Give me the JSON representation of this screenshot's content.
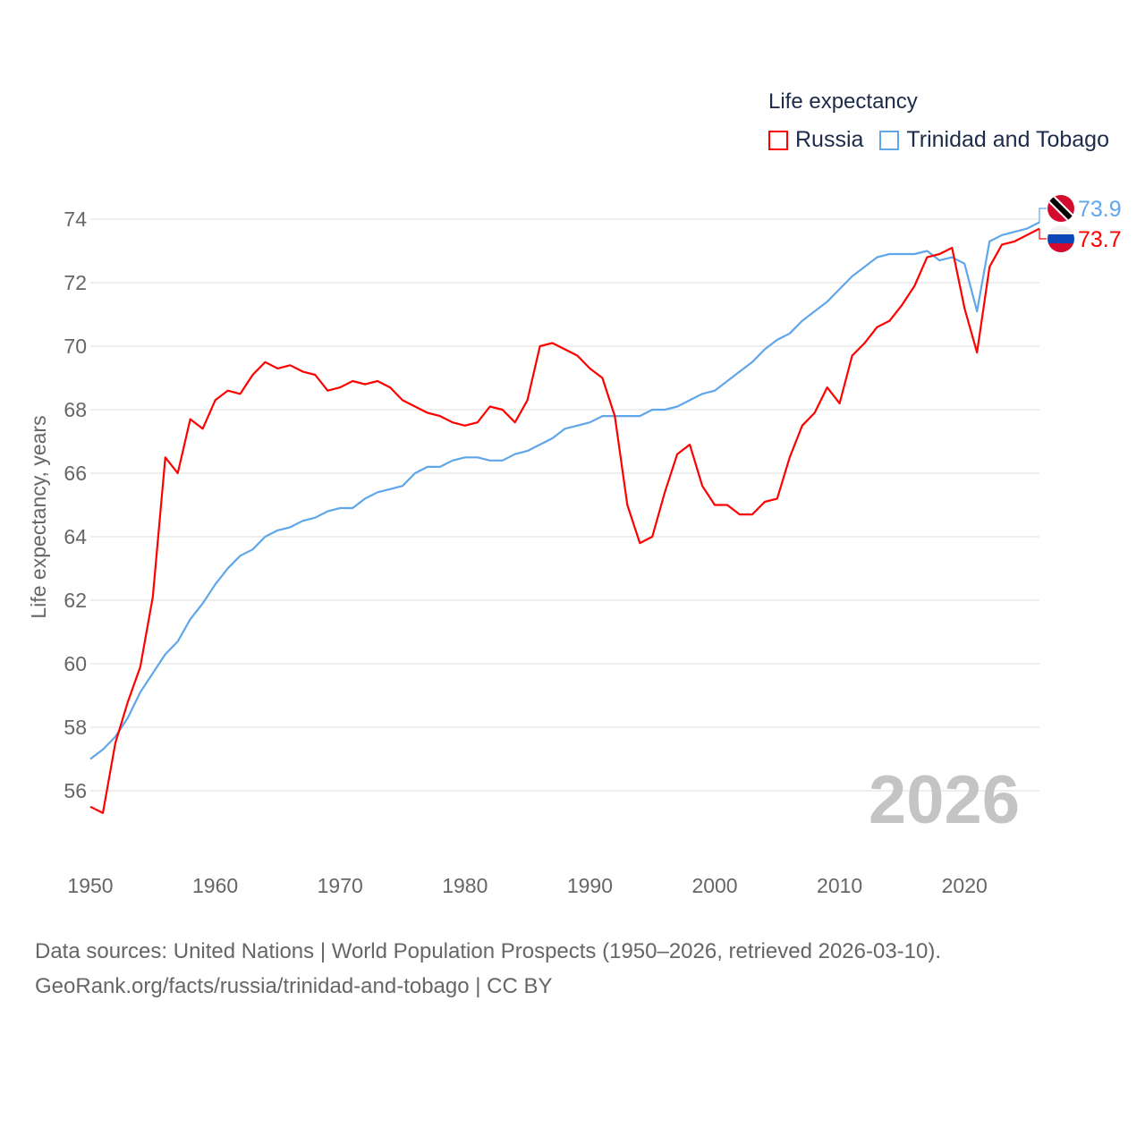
{
  "chart_data": {
    "type": "line",
    "title": "Life expectancy",
    "ylabel": "Life expectancy, years",
    "xlabel": "",
    "xlim": [
      1950,
      2026
    ],
    "ylim": [
      54,
      75
    ],
    "grid": true,
    "legend_placement": "top-right",
    "x_ticks": [
      "1950",
      "1960",
      "1970",
      "1980",
      "1990",
      "2000",
      "2010",
      "2020"
    ],
    "y_ticks": [
      "56",
      "58",
      "60",
      "62",
      "64",
      "66",
      "68",
      "70",
      "72",
      "74"
    ],
    "year_watermark": "2026",
    "x_start": 1950,
    "series": [
      {
        "name": "Russia",
        "color": "#ff0000",
        "end_label": "73.7",
        "flag": "russia-flag",
        "values": [
          55.5,
          55.3,
          57.5,
          58.8,
          59.9,
          62.1,
          66.5,
          66.0,
          67.7,
          67.4,
          68.3,
          68.6,
          68.5,
          69.1,
          69.5,
          69.3,
          69.4,
          69.2,
          69.1,
          68.6,
          68.7,
          68.9,
          68.8,
          68.9,
          68.7,
          68.3,
          68.1,
          67.9,
          67.8,
          67.6,
          67.5,
          67.6,
          68.1,
          68.0,
          67.6,
          68.3,
          70.0,
          70.1,
          69.9,
          69.7,
          69.3,
          69.0,
          67.8,
          65.0,
          63.8,
          64.0,
          65.4,
          66.6,
          66.9,
          65.6,
          65.0,
          65.0,
          64.7,
          64.7,
          65.1,
          65.2,
          66.5,
          67.5,
          67.9,
          68.7,
          68.2,
          69.7,
          70.1,
          70.6,
          70.8,
          71.3,
          71.9,
          72.8,
          72.9,
          73.1,
          71.2,
          69.8,
          72.5,
          73.2,
          73.3,
          73.5,
          73.7
        ]
      },
      {
        "name": "Trinidad and Tobago",
        "color": "#5fa6ea",
        "end_label": "73.9",
        "flag": "trinidad-flag",
        "values": [
          57.0,
          57.3,
          57.7,
          58.3,
          59.1,
          59.7,
          60.3,
          60.7,
          61.4,
          61.9,
          62.5,
          63.0,
          63.4,
          63.6,
          64.0,
          64.2,
          64.3,
          64.5,
          64.6,
          64.8,
          64.9,
          64.9,
          65.2,
          65.4,
          65.5,
          65.6,
          66.0,
          66.2,
          66.2,
          66.4,
          66.5,
          66.5,
          66.4,
          66.4,
          66.6,
          66.7,
          66.9,
          67.1,
          67.4,
          67.5,
          67.6,
          67.8,
          67.8,
          67.8,
          67.8,
          68.0,
          68.0,
          68.1,
          68.3,
          68.5,
          68.6,
          68.9,
          69.2,
          69.5,
          69.9,
          70.2,
          70.4,
          70.8,
          71.1,
          71.4,
          71.8,
          72.2,
          72.5,
          72.8,
          72.9,
          72.9,
          72.9,
          73.0,
          72.7,
          72.8,
          72.6,
          71.1,
          73.3,
          73.5,
          73.6,
          73.7,
          73.9
        ]
      }
    ]
  },
  "footer": {
    "line1": "Data sources: United Nations | World Population Prospects (1950–2026, retrieved 2026-03-10).",
    "line2": "GeoRank.org/facts/russia/trinidad-and-tobago | CC BY"
  }
}
